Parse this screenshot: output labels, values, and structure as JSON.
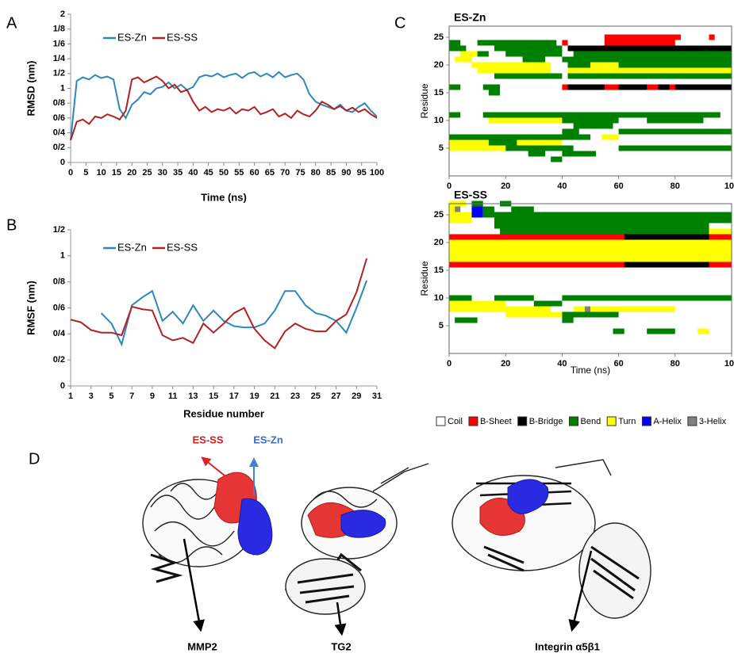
{
  "panel_labels": [
    "A",
    "B",
    "C",
    "D"
  ],
  "chart_data": [
    {
      "type": "line",
      "ylabel": "RMSD (nm)",
      "xlabel": "Time (ns)",
      "xlim": [
        0,
        100
      ],
      "xticks": [
        0,
        5,
        10,
        15,
        20,
        25,
        30,
        35,
        40,
        45,
        50,
        55,
        60,
        65,
        70,
        75,
        80,
        85,
        90,
        95,
        100
      ],
      "ylim": [
        0,
        2
      ],
      "yticks": [
        0,
        {
          "value": 0.2,
          "label": "0/2"
        },
        {
          "value": 0.4,
          "label": "0/4"
        },
        {
          "value": 0.6,
          "label": "0/6"
        },
        {
          "value": 0.8,
          "label": "0/8"
        },
        1,
        {
          "value": 1.2,
          "label": "1/2"
        },
        {
          "value": 1.4,
          "label": "1/4"
        },
        {
          "value": 1.6,
          "label": "1/6"
        },
        {
          "value": 1.8,
          "label": "1/8"
        },
        2
      ],
      "x": [
        0,
        2,
        4,
        6,
        8,
        10,
        12,
        14,
        16,
        18,
        20,
        22,
        24,
        26,
        28,
        30,
        32,
        34,
        36,
        38,
        40,
        42,
        44,
        46,
        48,
        50,
        52,
        54,
        56,
        58,
        60,
        62,
        64,
        66,
        68,
        70,
        72,
        74,
        76,
        78,
        80,
        82,
        84,
        86,
        88,
        90,
        92,
        94,
        96,
        98,
        100
      ],
      "series": [
        {
          "name": "ES-Zn",
          "color": "#2e86c1",
          "values": [
            0.3,
            1.1,
            1.15,
            1.12,
            1.18,
            1.14,
            1.16,
            1.12,
            0.72,
            0.6,
            0.78,
            0.85,
            0.95,
            0.92,
            1.0,
            1.02,
            1.08,
            1.0,
            1.05,
            0.98,
            1.02,
            1.15,
            1.18,
            1.16,
            1.2,
            1.15,
            1.18,
            1.2,
            1.14,
            1.2,
            1.22,
            1.16,
            1.2,
            1.15,
            1.22,
            1.15,
            1.18,
            1.2,
            1.12,
            0.92,
            0.82,
            0.78,
            0.75,
            0.72,
            0.78,
            0.7,
            0.68,
            0.75,
            0.8,
            0.7,
            0.62
          ]
        },
        {
          "name": "ES-SS",
          "color": "#b22222",
          "values": [
            0.3,
            0.55,
            0.58,
            0.52,
            0.62,
            0.6,
            0.65,
            0.62,
            0.58,
            0.7,
            1.12,
            1.15,
            1.08,
            1.12,
            1.16,
            1.1,
            1.0,
            1.05,
            0.95,
            0.98,
            0.82,
            0.7,
            0.75,
            0.68,
            0.72,
            0.7,
            0.74,
            0.66,
            0.72,
            0.7,
            0.75,
            0.65,
            0.68,
            0.72,
            0.62,
            0.66,
            0.6,
            0.7,
            0.65,
            0.62,
            0.7,
            0.82,
            0.78,
            0.72,
            0.76,
            0.7,
            0.74,
            0.68,
            0.72,
            0.65,
            0.6
          ]
        }
      ]
    },
    {
      "type": "line",
      "ylabel": "RMSF (nm)",
      "xlabel": "Residue number",
      "xlim": [
        1,
        31
      ],
      "xticks": [
        1,
        3,
        5,
        7,
        9,
        11,
        13,
        15,
        17,
        19,
        21,
        23,
        25,
        27,
        29,
        31
      ],
      "ylim": [
        0,
        1.2
      ],
      "yticks": [
        0,
        {
          "value": 0.2,
          "label": "0/2"
        },
        {
          "value": 0.4,
          "label": "0/4"
        },
        {
          "value": 0.6,
          "label": "0/6"
        },
        {
          "value": 0.8,
          "label": "0/8"
        },
        1,
        {
          "value": 1.2,
          "label": "1/2"
        }
      ],
      "x": [
        1,
        2,
        3,
        4,
        5,
        6,
        7,
        8,
        9,
        10,
        11,
        12,
        13,
        14,
        15,
        16,
        17,
        18,
        19,
        20,
        21,
        22,
        23,
        24,
        25,
        26,
        27,
        28,
        29,
        30
      ],
      "series": [
        {
          "name": "ES-Zn",
          "color": "#2e86c1",
          "values": [
            null,
            null,
            null,
            0.56,
            0.48,
            0.32,
            0.62,
            0.68,
            0.73,
            0.5,
            0.57,
            0.48,
            0.62,
            0.5,
            0.58,
            0.5,
            0.46,
            0.45,
            0.45,
            0.48,
            0.58,
            0.73,
            0.73,
            0.62,
            0.56,
            0.54,
            0.5,
            0.41,
            0.6,
            0.81
          ]
        },
        {
          "name": "ES-SS",
          "color": "#b22222",
          "values": [
            0.51,
            0.49,
            0.43,
            0.41,
            0.41,
            0.39,
            0.61,
            0.59,
            0.58,
            0.39,
            0.35,
            0.37,
            0.33,
            0.48,
            0.41,
            0.48,
            0.56,
            0.6,
            0.44,
            0.35,
            0.29,
            0.42,
            0.48,
            0.44,
            0.42,
            0.42,
            0.5,
            0.55,
            0.72,
            0.98
          ]
        }
      ]
    },
    {
      "type": "dssp",
      "title": "ES-Zn",
      "ylabel": "Residue",
      "xlim": [
        0,
        100
      ],
      "xticks": [
        0,
        20,
        40,
        60,
        80,
        100
      ],
      "ylim": [
        0,
        27
      ],
      "yticks": [
        5,
        10,
        15,
        20,
        25
      ],
      "segments": [
        {
          "residue": 25,
          "start": 55,
          "end": 82,
          "state": "B-Sheet"
        },
        {
          "residue": 25,
          "start": 92,
          "end": 94,
          "state": "B-Sheet"
        },
        {
          "residue": 24,
          "start": 0,
          "end": 4,
          "state": "Bend"
        },
        {
          "residue": 24,
          "start": 10,
          "end": 38,
          "state": "Bend"
        },
        {
          "residue": 24,
          "start": 40,
          "end": 42,
          "state": "B-Sheet"
        },
        {
          "residue": 24,
          "start": 55,
          "end": 80,
          "state": "B-Sheet"
        },
        {
          "residue": 23,
          "start": 0,
          "end": 6,
          "state": "Bend"
        },
        {
          "residue": 23,
          "start": 16,
          "end": 40,
          "state": "Bend"
        },
        {
          "residue": 23,
          "start": 42,
          "end": 100,
          "state": "B-Bridge"
        },
        {
          "residue": 22,
          "start": 4,
          "end": 10,
          "state": "Turn"
        },
        {
          "residue": 22,
          "start": 10,
          "end": 14,
          "state": "Bend"
        },
        {
          "residue": 22,
          "start": 20,
          "end": 40,
          "state": "Bend"
        },
        {
          "residue": 22,
          "start": 44,
          "end": 100,
          "state": "Bend"
        },
        {
          "residue": 21,
          "start": 2,
          "end": 8,
          "state": "Turn"
        },
        {
          "residue": 21,
          "start": 26,
          "end": 34,
          "state": "Bend"
        },
        {
          "residue": 21,
          "start": 40,
          "end": 100,
          "state": "Bend"
        },
        {
          "residue": 20,
          "start": 8,
          "end": 36,
          "state": "Turn"
        },
        {
          "residue": 20,
          "start": 42,
          "end": 100,
          "state": "Bend"
        },
        {
          "residue": 20,
          "start": 50,
          "end": 60,
          "state": "Turn"
        },
        {
          "residue": 19,
          "start": 10,
          "end": 36,
          "state": "Turn"
        },
        {
          "residue": 19,
          "start": 42,
          "end": 100,
          "state": "Turn"
        },
        {
          "residue": 18,
          "start": 16,
          "end": 40,
          "state": "Bend"
        },
        {
          "residue": 18,
          "start": 42,
          "end": 100,
          "state": "Bend"
        },
        {
          "residue": 16,
          "start": 0,
          "end": 4,
          "state": "Bend"
        },
        {
          "residue": 16,
          "start": 12,
          "end": 18,
          "state": "Bend"
        },
        {
          "residue": 16,
          "start": 40,
          "end": 42,
          "state": "B-Sheet"
        },
        {
          "residue": 16,
          "start": 42,
          "end": 100,
          "state": "B-Bridge"
        },
        {
          "residue": 16,
          "start": 55,
          "end": 60,
          "state": "B-Sheet"
        },
        {
          "residue": 16,
          "start": 70,
          "end": 74,
          "state": "B-Sheet"
        },
        {
          "residue": 16,
          "start": 78,
          "end": 80,
          "state": "B-Sheet"
        },
        {
          "residue": 15,
          "start": 14,
          "end": 18,
          "state": "Bend"
        },
        {
          "residue": 11,
          "start": 0,
          "end": 4,
          "state": "Bend"
        },
        {
          "residue": 11,
          "start": 12,
          "end": 96,
          "state": "Bend"
        },
        {
          "residue": 10,
          "start": 14,
          "end": 40,
          "state": "Turn"
        },
        {
          "residue": 10,
          "start": 40,
          "end": 60,
          "state": "Bend"
        },
        {
          "residue": 10,
          "start": 70,
          "end": 90,
          "state": "Bend"
        },
        {
          "residue": 9,
          "start": 44,
          "end": 58,
          "state": "Bend"
        },
        {
          "residue": 8,
          "start": 40,
          "end": 46,
          "state": "Bend"
        },
        {
          "residue": 8,
          "start": 60,
          "end": 100,
          "state": "Bend"
        },
        {
          "residue": 7,
          "start": 0,
          "end": 50,
          "state": "Bend"
        },
        {
          "residue": 7,
          "start": 54,
          "end": 60,
          "state": "Turn"
        },
        {
          "residue": 6,
          "start": 0,
          "end": 14,
          "state": "Turn"
        },
        {
          "residue": 6,
          "start": 14,
          "end": 24,
          "state": "Bend"
        },
        {
          "residue": 6,
          "start": 24,
          "end": 40,
          "state": "Turn"
        },
        {
          "residue": 5,
          "start": 0,
          "end": 20,
          "state": "Turn"
        },
        {
          "residue": 5,
          "start": 20,
          "end": 44,
          "state": "Bend"
        },
        {
          "residue": 5,
          "start": 60,
          "end": 100,
          "state": "Bend"
        },
        {
          "residue": 4,
          "start": 28,
          "end": 34,
          "state": "Bend"
        },
        {
          "residue": 4,
          "start": 40,
          "end": 52,
          "state": "Bend"
        },
        {
          "residue": 3,
          "start": 36,
          "end": 40,
          "state": "Bend"
        }
      ]
    },
    {
      "type": "dssp",
      "title": "ES-SS",
      "ylabel": "Residue",
      "xlabel": "Time (ns)",
      "xlim": [
        0,
        100
      ],
      "xticks": [
        0,
        20,
        40,
        60,
        80,
        100
      ],
      "ylim": [
        0,
        27
      ],
      "yticks": [
        5,
        10,
        15,
        20,
        25
      ],
      "segments": [
        {
          "residue": 27,
          "start": 0,
          "end": 6,
          "state": "Turn"
        },
        {
          "residue": 27,
          "start": 8,
          "end": 12,
          "state": "Bend"
        },
        {
          "residue": 27,
          "start": 18,
          "end": 22,
          "state": "Bend"
        },
        {
          "residue": 26,
          "start": 0,
          "end": 4,
          "state": "Turn"
        },
        {
          "residue": 26,
          "start": 2,
          "end": 4,
          "state": "3-Helix"
        },
        {
          "residue": 26,
          "start": 8,
          "end": 12,
          "state": "A-Helix"
        },
        {
          "residue": 26,
          "start": 12,
          "end": 16,
          "state": "Bend"
        },
        {
          "residue": 26,
          "start": 22,
          "end": 30,
          "state": "Bend"
        },
        {
          "residue": 25,
          "start": 0,
          "end": 8,
          "state": "Turn"
        },
        {
          "residue": 25,
          "start": 8,
          "end": 12,
          "state": "A-Helix"
        },
        {
          "residue": 25,
          "start": 12,
          "end": 100,
          "state": "Bend"
        },
        {
          "residue": 24,
          "start": 0,
          "end": 8,
          "state": "Turn"
        },
        {
          "residue": 24,
          "start": 16,
          "end": 100,
          "state": "Bend"
        },
        {
          "residue": 23,
          "start": 16,
          "end": 92,
          "state": "Bend"
        },
        {
          "residue": 22,
          "start": 18,
          "end": 92,
          "state": "Bend"
        },
        {
          "residue": 22,
          "start": 92,
          "end": 100,
          "state": "Turn"
        },
        {
          "residue": 21,
          "start": 0,
          "end": 100,
          "state": "B-Sheet"
        },
        {
          "residue": 21,
          "start": 62,
          "end": 92,
          "state": "B-Bridge"
        },
        {
          "residue": 20,
          "start": 0,
          "end": 100,
          "state": "Turn"
        },
        {
          "residue": 19,
          "start": 0,
          "end": 100,
          "state": "Turn"
        },
        {
          "residue": 18,
          "start": 0,
          "end": 100,
          "state": "Turn"
        },
        {
          "residue": 17,
          "start": 0,
          "end": 100,
          "state": "Turn"
        },
        {
          "residue": 16,
          "start": 0,
          "end": 100,
          "state": "B-Sheet"
        },
        {
          "residue": 16,
          "start": 62,
          "end": 92,
          "state": "B-Bridge"
        },
        {
          "residue": 10,
          "start": 0,
          "end": 8,
          "state": "Bend"
        },
        {
          "residue": 10,
          "start": 16,
          "end": 30,
          "state": "Bend"
        },
        {
          "residue": 10,
          "start": 40,
          "end": 100,
          "state": "Bend"
        },
        {
          "residue": 9,
          "start": 0,
          "end": 20,
          "state": "Turn"
        },
        {
          "residue": 9,
          "start": 30,
          "end": 40,
          "state": "Bend"
        },
        {
          "residue": 8,
          "start": 0,
          "end": 36,
          "state": "Turn"
        },
        {
          "residue": 8,
          "start": 44,
          "end": 80,
          "state": "Turn"
        },
        {
          "residue": 8,
          "start": 48,
          "end": 50,
          "state": "3-Helix"
        },
        {
          "residue": 7,
          "start": 20,
          "end": 40,
          "state": "Turn"
        },
        {
          "residue": 7,
          "start": 40,
          "end": 60,
          "state": "Bend"
        },
        {
          "residue": 6,
          "start": 2,
          "end": 10,
          "state": "Bend"
        },
        {
          "residue": 6,
          "start": 40,
          "end": 44,
          "state": "Bend"
        },
        {
          "residue": 4,
          "start": 58,
          "end": 62,
          "state": "Bend"
        },
        {
          "residue": 4,
          "start": 70,
          "end": 80,
          "state": "Bend"
        },
        {
          "residue": 4,
          "start": 88,
          "end": 92,
          "state": "Turn"
        }
      ]
    }
  ],
  "dssp_legend": [
    {
      "name": "Coil",
      "color": "#ffffff"
    },
    {
      "name": "B-Sheet",
      "color": "#ff0000"
    },
    {
      "name": "B-Bridge",
      "color": "#000000"
    },
    {
      "name": "Bend",
      "color": "#008000"
    },
    {
      "name": "Turn",
      "color": "#ffff00"
    },
    {
      "name": "A-Helix",
      "color": "#0000ff"
    },
    {
      "name": "3-Helix",
      "color": "#808080"
    }
  ],
  "panel_d": {
    "labels": [
      "ES-SS",
      "ES-Zn",
      "MMP2",
      "TG2",
      "Integrin α5β1"
    ]
  }
}
